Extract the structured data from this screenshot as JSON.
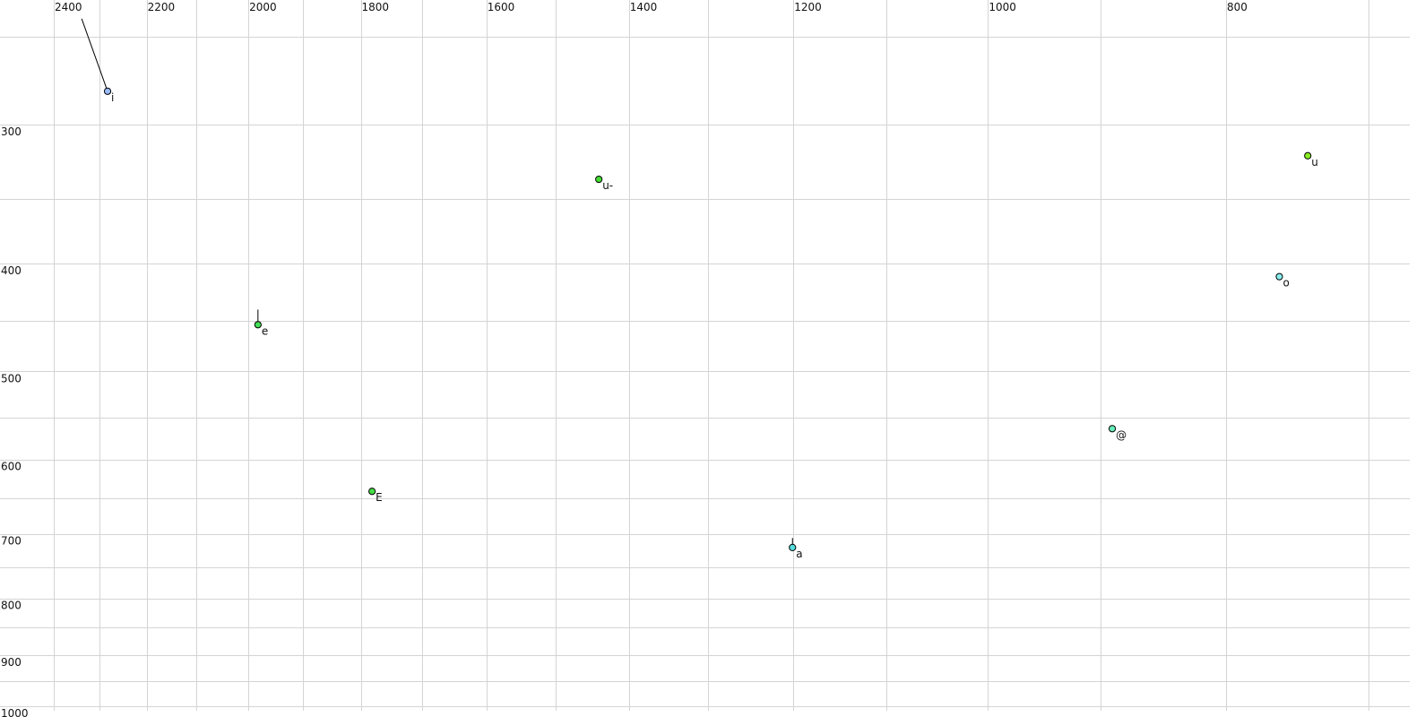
{
  "chart_data": {
    "type": "scatter",
    "title": "",
    "xlabel": "",
    "ylabel": "",
    "x_axis": {
      "quantity": "F2",
      "scale": "log",
      "reversed": true,
      "xlim": [
        2400,
        700
      ],
      "ticks": [
        2400,
        2300,
        2200,
        2100,
        2000,
        1900,
        1800,
        1700,
        1600,
        1500,
        1400,
        1300,
        1200,
        1100,
        1000,
        900,
        800,
        700
      ],
      "tick_labels": [
        "2400",
        "2200",
        "2000",
        "1800",
        "1600",
        "1400",
        "1200",
        "1000",
        "800"
      ]
    },
    "y_axis": {
      "quantity": "F1",
      "scale": "log",
      "reversed": false,
      "ylim": [
        250,
        1000
      ],
      "ticks": [
        250,
        300,
        350,
        400,
        450,
        500,
        550,
        600,
        650,
        700,
        750,
        800,
        850,
        900,
        950,
        1000
      ],
      "tick_labels": [
        "300",
        "400",
        "500",
        "600",
        "700",
        "800",
        "900",
        "1000"
      ]
    },
    "grid": true,
    "points": [
      {
        "label": "i",
        "F2": 2282,
        "F1": 280,
        "color": "#99bbff",
        "trail_from": {
          "F2": 2338,
          "F1": 241
        }
      },
      {
        "label": "e",
        "F2": 1982,
        "F1": 454,
        "color": "#44dd55",
        "trail_from": {
          "F2": 1982,
          "F1": 440
        }
      },
      {
        "label": "u-",
        "F2": 1440,
        "F1": 336,
        "color": "#44dd33"
      },
      {
        "label": "u",
        "F2": 741,
        "F1": 320,
        "color": "#88ee22"
      },
      {
        "label": "o",
        "F2": 761,
        "F1": 411,
        "color": "#88eeee"
      },
      {
        "label": "@",
        "F2": 890,
        "F1": 563,
        "color": "#66eebb"
      },
      {
        "label": "E",
        "F2": 1781,
        "F1": 641,
        "color": "#44dd44"
      },
      {
        "label": "a",
        "F2": 1201,
        "F1": 720,
        "color": "#55dddd",
        "trail_from": {
          "F2": 1201,
          "F1": 706
        }
      }
    ]
  }
}
